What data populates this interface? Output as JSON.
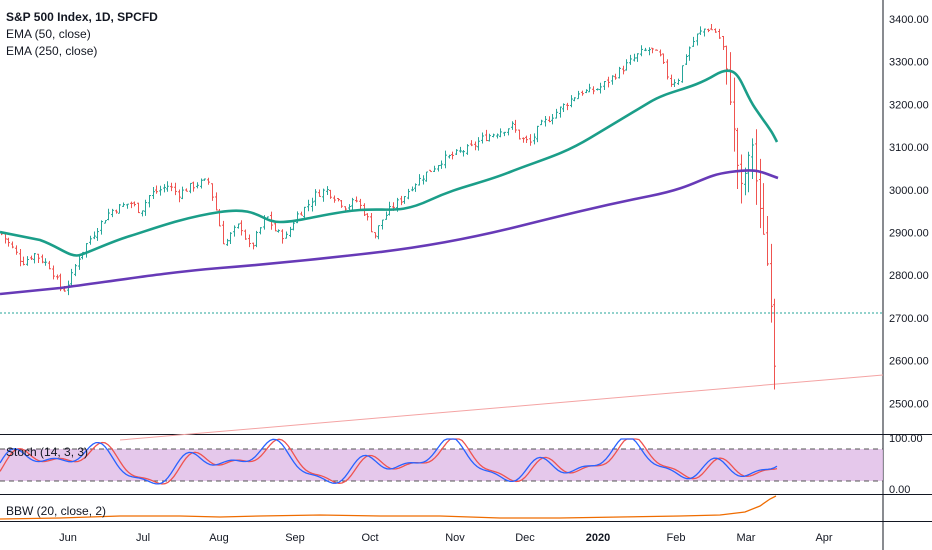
{
  "chart_data": [
    {
      "type": "candlestick",
      "title": "S&P 500 Index, 1D, SPCFD",
      "indicators": [
        "EMA (50, close)",
        "EMA (250, close)"
      ],
      "ylim": [
        2450,
        3420
      ],
      "y_ticks": [
        "3400.00",
        "3300.00",
        "3200.00",
        "3100.00",
        "3000.00",
        "2900.00",
        "2800.00",
        "2700.00",
        "2600.00",
        "2500.00"
      ],
      "x_ticks": [
        "Jun",
        "Jul",
        "Aug",
        "Sep",
        "Oct",
        "Nov",
        "Dec",
        "2020",
        "Feb",
        "Mar",
        "Apr"
      ],
      "horizontal_line": 2710,
      "colors": {
        "up": "#26a69a",
        "down": "#ef5350",
        "ema50": "#1b9e89",
        "ema250": "#673ab7",
        "trendline": "#f4a3a3",
        "hline": "#26a69a"
      },
      "close_path": [
        [
          0,
          2900
        ],
        [
          10,
          2870
        ],
        [
          22,
          2830
        ],
        [
          34,
          2850
        ],
        [
          50,
          2820
        ],
        [
          62,
          2760
        ],
        [
          70,
          2790
        ],
        [
          78,
          2840
        ],
        [
          88,
          2880
        ],
        [
          100,
          2920
        ],
        [
          110,
          2950
        ],
        [
          120,
          2960
        ],
        [
          130,
          2970
        ],
        [
          140,
          2950
        ],
        [
          150,
          2990
        ],
        [
          160,
          3000
        ],
        [
          168,
          3010
        ],
        [
          178,
          2990
        ],
        [
          188,
          3005
        ],
        [
          198,
          3015
        ],
        [
          208,
          3020
        ],
        [
          216,
          2950
        ],
        [
          224,
          2870
        ],
        [
          232,
          2900
        ],
        [
          240,
          2920
        ],
        [
          250,
          2860
        ],
        [
          258,
          2900
        ],
        [
          266,
          2940
        ],
        [
          276,
          2900
        ],
        [
          286,
          2890
        ],
        [
          296,
          2940
        ],
        [
          306,
          2960
        ],
        [
          316,
          2990
        ],
        [
          326,
          3000
        ],
        [
          336,
          2980
        ],
        [
          346,
          2960
        ],
        [
          356,
          2975
        ],
        [
          366,
          2940
        ],
        [
          374,
          2890
        ],
        [
          382,
          2930
        ],
        [
          392,
          2960
        ],
        [
          402,
          2980
        ],
        [
          412,
          3010
        ],
        [
          422,
          3030
        ],
        [
          432,
          3050
        ],
        [
          442,
          3070
        ],
        [
          452,
          3080
        ],
        [
          462,
          3090
        ],
        [
          472,
          3100
        ],
        [
          482,
          3120
        ],
        [
          492,
          3130
        ],
        [
          502,
          3140
        ],
        [
          512,
          3150
        ],
        [
          520,
          3120
        ],
        [
          530,
          3110
        ],
        [
          540,
          3150
        ],
        [
          550,
          3170
        ],
        [
          560,
          3190
        ],
        [
          570,
          3210
        ],
        [
          580,
          3230
        ],
        [
          590,
          3230
        ],
        [
          600,
          3240
        ],
        [
          610,
          3260
        ],
        [
          620,
          3280
        ],
        [
          630,
          3300
        ],
        [
          640,
          3320
        ],
        [
          650,
          3330
        ],
        [
          660,
          3310
        ],
        [
          670,
          3250
        ],
        [
          678,
          3260
        ],
        [
          686,
          3320
        ],
        [
          696,
          3360
        ],
        [
          706,
          3380
        ],
        [
          716,
          3370
        ],
        [
          722,
          3340
        ],
        [
          728,
          3250
        ],
        [
          734,
          3130
        ],
        [
          740,
          3000
        ],
        [
          746,
          3050
        ],
        [
          752,
          3110
        ],
        [
          758,
          2970
        ],
        [
          764,
          2890
        ],
        [
          770,
          2760
        ],
        [
          774,
          2600
        ],
        [
          778,
          2500
        ]
      ]
    },
    {
      "type": "line",
      "title": "Stoch (14, 3, 3)",
      "ylim": [
        0,
        100
      ],
      "y_ticks": [
        "100.00",
        "0.00"
      ],
      "bands": [
        80,
        20
      ],
      "band_fill": "#e1bee7",
      "colors": {
        "k": "#2962ff",
        "d": "#ef5350"
      }
    },
    {
      "type": "line",
      "title": "BBW (20, close, 2)",
      "colors": {
        "line": "#ef6c00"
      }
    }
  ]
}
